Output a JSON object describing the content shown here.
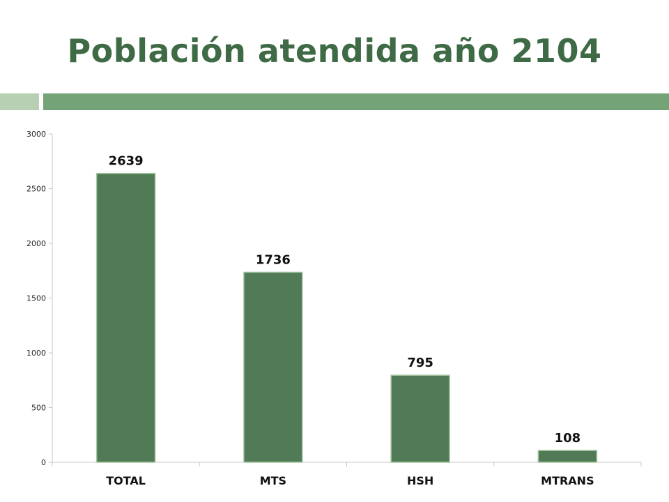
{
  "slide": {
    "title": "Población atendida año 2104"
  },
  "colors": {
    "title": "#3e6b45",
    "bar": "#517b56",
    "decor_light": "#b7cfb3",
    "decor_dark": "#74a377"
  },
  "chart_data": {
    "type": "bar",
    "categories": [
      "TOTAL",
      "MTS",
      "HSH",
      "MTRANS"
    ],
    "values": [
      2639,
      1736,
      795,
      108
    ],
    "data_labels": [
      "2639",
      "1736",
      "795",
      "108"
    ],
    "yticks": [
      0,
      500,
      1000,
      1500,
      2000,
      2500,
      3000
    ],
    "ylim": [
      0,
      3000
    ],
    "grid": false,
    "legend": "none"
  }
}
